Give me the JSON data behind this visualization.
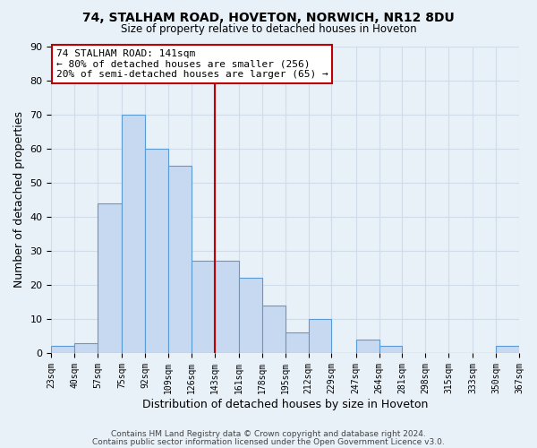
{
  "title": "74, STALHAM ROAD, HOVETON, NORWICH, NR12 8DU",
  "subtitle": "Size of property relative to detached houses in Hoveton",
  "xlabel": "Distribution of detached houses by size in Hoveton",
  "ylabel": "Number of detached properties",
  "footer_line1": "Contains HM Land Registry data © Crown copyright and database right 2024.",
  "footer_line2": "Contains public sector information licensed under the Open Government Licence v3.0.",
  "bar_edges": [
    23,
    40,
    57,
    75,
    92,
    109,
    126,
    143,
    161,
    178,
    195,
    212,
    229,
    247,
    264,
    281,
    298,
    315,
    333,
    350,
    367
  ],
  "bar_heights": [
    2,
    3,
    44,
    70,
    60,
    55,
    27,
    27,
    22,
    14,
    6,
    10,
    0,
    4,
    2,
    0,
    0,
    0,
    0,
    2
  ],
  "bar_color": "#c7d9f0",
  "bar_edge_color": "#5b9bd5",
  "vline_x": 143,
  "vline_color": "#c00000",
  "annotation_title": "74 STALHAM ROAD: 141sqm",
  "annotation_line2": "← 80% of detached houses are smaller (256)",
  "annotation_line3": "20% of semi-detached houses are larger (65) →",
  "annotation_box_color": "#c00000",
  "annotation_text_color": "#000000",
  "annotation_bg": "#ffffff",
  "xlim_left": 23,
  "xlim_right": 367,
  "ylim_top": 90,
  "ylim_bottom": 0,
  "tick_labels": [
    "23sqm",
    "40sqm",
    "57sqm",
    "75sqm",
    "92sqm",
    "109sqm",
    "126sqm",
    "143sqm",
    "161sqm",
    "178sqm",
    "195sqm",
    "212sqm",
    "229sqm",
    "247sqm",
    "264sqm",
    "281sqm",
    "298sqm",
    "315sqm",
    "333sqm",
    "350sqm",
    "367sqm"
  ],
  "tick_positions": [
    23,
    40,
    57,
    75,
    92,
    109,
    126,
    143,
    161,
    178,
    195,
    212,
    229,
    247,
    264,
    281,
    298,
    315,
    333,
    350,
    367
  ],
  "yticks": [
    0,
    10,
    20,
    30,
    40,
    50,
    60,
    70,
    80,
    90
  ],
  "grid_color": "#d0dce8",
  "background_color": "#e8f0f8"
}
